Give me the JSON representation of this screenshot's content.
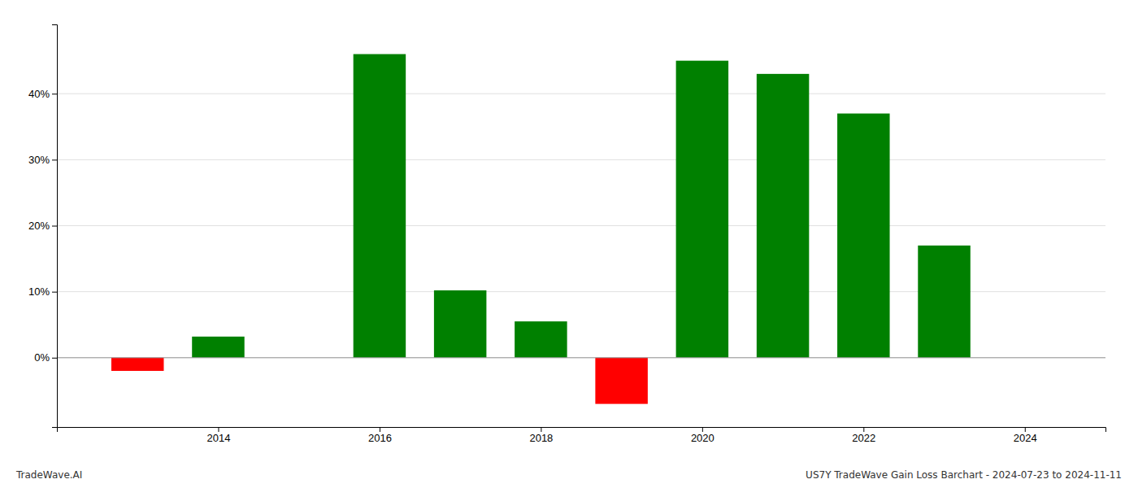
{
  "chart_data": {
    "type": "bar",
    "x": [
      2013,
      2014,
      2016,
      2017,
      2018,
      2019,
      2020,
      2021,
      2022,
      2023
    ],
    "values": [
      -2.0,
      3.2,
      46.0,
      10.2,
      5.5,
      -7.0,
      45.0,
      43.0,
      37.0,
      17.0
    ],
    "colors": [
      "#ff0000",
      "#008000",
      "#008000",
      "#008000",
      "#008000",
      "#ff0000",
      "#008000",
      "#008000",
      "#008000",
      "#008000"
    ],
    "xlim": [
      2012.0,
      2025.0
    ],
    "xticks": [
      2014,
      2016,
      2018,
      2020,
      2022,
      2024
    ],
    "ylim": [
      -10.5,
      50.5
    ],
    "yticks": [
      {
        "value": 0,
        "label": "0%"
      },
      {
        "value": 10,
        "label": "10%"
      },
      {
        "value": 20,
        "label": "20%"
      },
      {
        "value": 30,
        "label": "30%"
      },
      {
        "value": 40,
        "label": "40%"
      }
    ],
    "grid": true,
    "annotations": [
      "TradeWave.AI",
      "US7Y TradeWave Gain Loss Barchart - 2024-07-23 to 2024-11-11"
    ]
  }
}
